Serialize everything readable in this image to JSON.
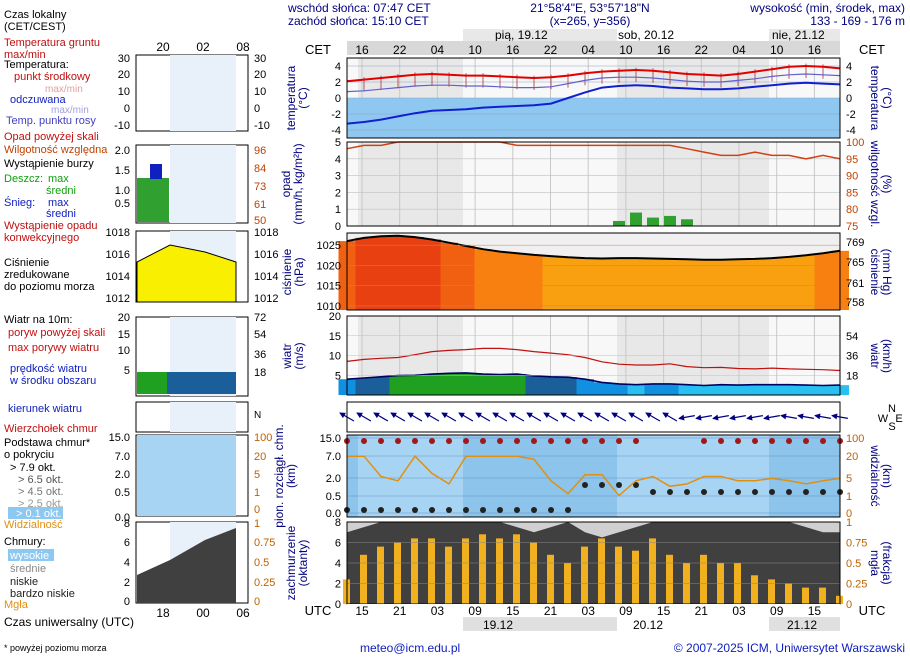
{
  "header": {
    "sunrise": "wschód słońca: 07:47 CET",
    "sunset": "zachód słońca: 15:10 CET",
    "coords": "21°58'4\"E, 53°57'18\"N",
    "grid": "(x=265,  y=356)",
    "altitude_title": "wysokość (min, środek, max)",
    "altitude_values": "133 - 169 - 176 m",
    "day_labels": [
      "pią, 19.12",
      "sob, 20.12",
      "nie, 21.12"
    ],
    "cet_label": "CET",
    "utc_label": "UTC",
    "utc_dates": [
      "19.12",
      "20.12",
      "21.12"
    ]
  },
  "legend": {
    "local_time": "Czas lokalny\n(CET/CEST)",
    "local_ticks": [
      "20",
      "02",
      "08"
    ],
    "soil_temp": "Temperatura gruntu\nmax/min",
    "temp_title": "Temperatura:",
    "temp_mid": "punkt środkowy",
    "temp_maxmin": "max/min",
    "perceived": "odczuwana",
    "perceived_maxmin": "max/min",
    "dew_point": "Temp. punktu rosy",
    "temp_ticks": [
      "30",
      "20",
      "10",
      "0",
      "-10"
    ],
    "precip_over": "Opad powyżej skali",
    "humidity": "Wilgotność względna",
    "storm": "Wystąpienie burzy",
    "rain": "Deszcz:",
    "rain_max": "max",
    "rain_avg": "średni",
    "snow": "Śnieg:",
    "snow_max": "max",
    "snow_avg": "średni",
    "convective": "Wystąpienie opadu\nkonwekcyjnego",
    "precip_ticks": [
      "2.0",
      "1.5",
      "1.0",
      "0.5"
    ],
    "hum_ticks": [
      "96",
      "84",
      "73",
      "61",
      "50"
    ],
    "pressure_title": "Ciśnienie\nzredukowane\ndo poziomu morza",
    "pressure_ticks": [
      "1018",
      "1016",
      "1014",
      "1012"
    ],
    "wind_title": "Wiatr na 10m:",
    "gust_over": "poryw powyżej skali",
    "gust_max": "max porywy wiatru",
    "wind_speed": "prędkość wiatru\nw środku obszaru",
    "wind_ticks": [
      "20",
      "15",
      "10",
      "5"
    ],
    "wind_kmh_ticks": [
      "72",
      "54",
      "36",
      "18"
    ],
    "wind_dir": "kierunek wiatru",
    "cloud_top": "Wierzchołek chmur",
    "cloud_base": "Podstawa chmur*\no pokryciu",
    "okt_79": "> 7.9 okt.",
    "okt_65": "> 6.5 okt.",
    "okt_45": "> 4.5 okt.",
    "okt_25": "> 2.5 okt.",
    "okt_01": "> 0.1 okt.",
    "base_ticks": [
      "15.0",
      "7.0",
      "2.0",
      "0.5",
      "0.0"
    ],
    "vis_ticks": [
      "100",
      "20",
      "5",
      "1",
      "0"
    ],
    "visibility": "Widzialność",
    "clouds_title": "Chmury:",
    "cl_high": "wysokie",
    "cl_mid": "średnie",
    "cl_low": "niskie",
    "cl_vlow": "bardzo niskie",
    "fog": "Mgła",
    "cloud_ticks": [
      "8",
      "6",
      "4",
      "2",
      "0"
    ],
    "fog_ticks": [
      "1",
      "0.75",
      "0.5",
      "0.25",
      "0"
    ],
    "utc": "Czas uniwersalny (UTC)",
    "utc_ticks": [
      "18",
      "00",
      "06"
    ],
    "footnote": "* powyżej poziomu morza"
  },
  "labels": {
    "temp_left": "temperatura\n(°C)",
    "temp_right": "(°C)\ntemperatura",
    "precip_left": "opad\n(mm/h, kg/m²h)",
    "precip_right": "(%)\nwilgotność wzgl.",
    "pres_left": "ciśnienie\n(hPa)",
    "pres_right": "(mm Hg)\nciśnienie",
    "wind_left": "wiatr\n(m/s)",
    "wind_right": "(km/h)\nwiatr",
    "cloud_left": "pion. rozciągł. chm.\n(km)",
    "cloud_right": "(km)\nwidzialność",
    "cov_left": "zachmurzenie\n(oktanty)",
    "cov_right": "(frakcja)\nmgła"
  },
  "footer": {
    "email": "meteo@icm.edu.pl",
    "copyright": "© 2007-2025 ICM, Uniwersytet Warszawski"
  },
  "chart_data": {
    "type": "line",
    "x_cet_ticks": [
      "16",
      "22",
      "04",
      "10",
      "16",
      "22",
      "04",
      "10",
      "16",
      "22",
      "04",
      "10",
      "16"
    ],
    "x_utc_ticks": [
      "15",
      "21",
      "03",
      "09",
      "15",
      "21",
      "03",
      "09",
      "15",
      "21",
      "03",
      "09",
      "15"
    ],
    "temperature": {
      "y_ticks": [
        4,
        2,
        0,
        -2,
        -4
      ],
      "ylim": [
        -5,
        5
      ],
      "series": [
        {
          "name": "punkt środkowy",
          "color": "#e00000",
          "values": [
            2.1,
            2.3,
            2.5,
            2.7,
            2.9,
            3.0,
            2.9,
            2.8,
            2.8,
            2.7,
            2.6,
            2.5,
            2.6,
            2.8,
            3.1,
            3.3,
            3.4,
            3.5,
            3.4,
            3.2,
            3.0,
            2.9,
            2.8,
            3.0,
            3.3,
            3.6,
            3.9,
            4.0,
            3.9,
            3.7
          ]
        },
        {
          "name": "odczuwana",
          "color": "#1020d0",
          "values": [
            -3.2,
            -3.0,
            -2.7,
            -2.3,
            -1.9,
            -1.6,
            -1.5,
            -1.4,
            -1.2,
            -1.1,
            -1.0,
            -0.9,
            -0.7,
            0.0,
            0.7,
            1.3,
            1.5,
            1.6,
            1.5,
            1.3,
            1.2,
            1.1,
            1.1,
            1.2,
            1.4,
            1.6,
            1.8,
            1.9,
            1.8,
            1.7
          ]
        },
        {
          "name": "Temp. punktu rosy",
          "color": "#6060d0",
          "values": [
            0.8,
            0.9,
            1.1,
            1.3,
            1.5,
            1.6,
            1.6,
            1.5,
            1.5,
            1.4,
            1.3,
            1.3,
            1.4,
            1.8,
            2.2,
            2.5,
            2.6,
            2.6,
            2.5,
            2.3,
            2.1,
            2.0,
            2.0,
            2.2,
            2.4,
            2.7,
            2.9,
            3.0,
            2.9,
            2.8
          ]
        }
      ]
    },
    "precipitation": {
      "y_ticks": [
        5,
        4,
        3,
        2,
        1,
        0
      ],
      "right_ticks": [
        100,
        95,
        90,
        85,
        80,
        75
      ],
      "humidity_series": [
        98,
        99,
        99,
        100,
        100,
        100,
        100,
        100,
        100,
        100,
        99,
        99,
        99,
        99,
        99,
        99,
        99,
        99,
        99,
        99,
        98,
        97,
        96,
        96,
        97,
        96,
        96,
        95,
        96,
        95
      ],
      "rain_values": [
        0,
        0,
        0,
        0,
        0,
        0,
        0,
        0,
        0,
        0,
        0,
        0,
        0,
        0,
        0,
        0,
        0.3,
        0.8,
        0.5,
        0.6,
        0.4,
        0,
        0,
        0,
        0,
        0,
        0,
        0,
        0,
        0
      ]
    },
    "pressure": {
      "y_ticks": [
        1025,
        1020,
        1015,
        1010
      ],
      "right_ticks": [
        769,
        765,
        761,
        758
      ],
      "values": [
        1026.0,
        1026.8,
        1027.2,
        1027.3,
        1027.0,
        1026.4,
        1025.6,
        1024.8,
        1024.0,
        1023.4,
        1023.0,
        1022.6,
        1022.3,
        1022.0,
        1021.8,
        1021.7,
        1021.8,
        1021.8,
        1021.7,
        1021.6,
        1021.5,
        1021.4,
        1021.4,
        1021.5,
        1021.6,
        1021.8,
        1022.1,
        1022.5,
        1023.0,
        1023.6
      ]
    },
    "wind": {
      "y_ticks": [
        20,
        15,
        10,
        5
      ],
      "right_ticks": [
        54,
        36,
        18
      ],
      "speed": [
        4.0,
        4.3,
        4.6,
        4.9,
        5.0,
        5.3,
        5.5,
        5.6,
        5.3,
        5.2,
        5.3,
        4.8,
        4.6,
        4.5,
        4.0,
        3.2,
        2.8,
        2.6,
        2.8,
        2.8,
        2.6,
        2.4,
        2.6,
        2.5,
        2.6,
        2.6,
        2.6,
        2.5,
        2.4,
        2.5
      ],
      "gust": [
        8.5,
        9.0,
        9.3,
        9.5,
        10.2,
        11.0,
        11.3,
        11.5,
        11.8,
        11.8,
        11.5,
        11.0,
        10.6,
        10.2,
        9.5,
        8.4,
        7.8,
        7.6,
        7.6,
        7.9,
        7.2,
        6.9,
        7.0,
        6.7,
        6.6,
        6.8,
        6.6,
        6.5,
        6.4,
        6.2
      ]
    },
    "clouds": {
      "y_ticks": [
        15.0,
        7.0,
        2.0,
        0.5,
        0.0
      ],
      "right_ticks": [
        100,
        20,
        5,
        1,
        0
      ],
      "visibility": [
        20,
        20,
        3,
        2,
        20,
        4,
        1.5,
        20,
        20,
        20,
        20,
        15,
        2,
        0.6,
        3.5,
        3.5,
        0.5,
        2,
        3,
        1.2,
        1.5,
        3,
        3,
        2,
        2,
        2.5,
        2,
        1.5,
        2,
        2.5
      ]
    },
    "coverage": {
      "y_ticks": [
        8,
        6,
        4,
        2,
        0
      ],
      "right_ticks": [
        1,
        0.75,
        0.5,
        0.25,
        0
      ],
      "fog": [
        0.3,
        0.6,
        0.7,
        0.75,
        0.8,
        0.8,
        0.7,
        0.8,
        0.85,
        0.8,
        0.85,
        0.75,
        0.6,
        0.5,
        0.7,
        0.8,
        0.7,
        0.65,
        0.8,
        0.6,
        0.5,
        0.6,
        0.5,
        0.5,
        0.35,
        0.3,
        0.25,
        0.2,
        0.2,
        0.1
      ],
      "cloud_total": [
        7.0,
        7.5,
        8.0,
        8.0,
        8.0,
        8.0,
        8.0,
        8.0,
        8.0,
        8.0,
        7.5,
        7.0,
        7.5,
        8.0,
        7.0,
        6.5,
        7.0,
        7.5,
        8.0,
        8.0,
        8.0,
        8.0,
        8.0,
        8.0,
        8.0,
        8.0,
        8.0,
        7.5,
        7.0,
        7.0
      ]
    }
  }
}
